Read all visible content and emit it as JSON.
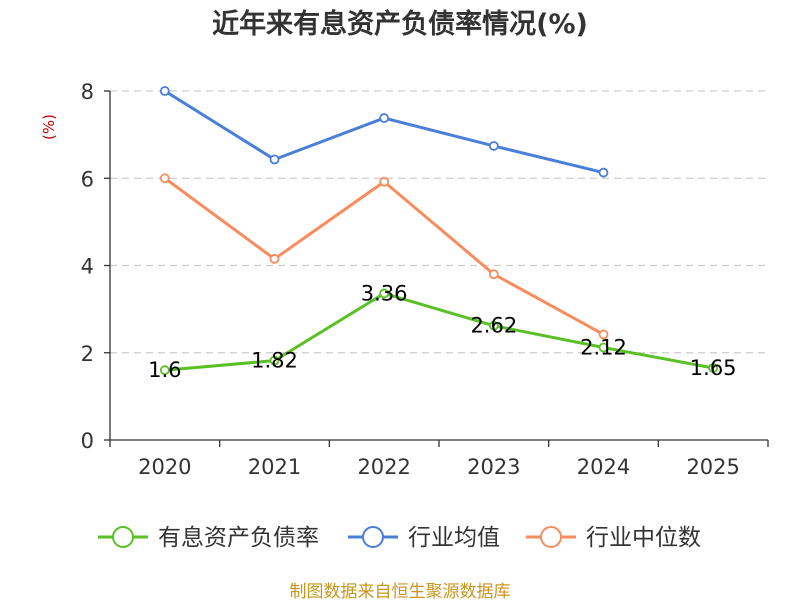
{
  "source": "制图数据来自恒生聚源数据库",
  "chart_data": {
    "type": "line",
    "title": "近年来有息资产负债率情况(%)",
    "ylabel": "(%)",
    "xlabel": "",
    "categories": [
      "2020",
      "2021",
      "2022",
      "2023",
      "2024",
      "2025"
    ],
    "ylim": [
      0,
      8
    ],
    "yticks": [
      "0",
      "2",
      "4",
      "6",
      "8"
    ],
    "grid": true,
    "legend_position": "bottom",
    "series": [
      {
        "name": "有息资产负债率",
        "color": "#5bbf26",
        "values": [
          1.6,
          1.82,
          3.36,
          2.62,
          2.12,
          1.65
        ],
        "labels": [
          "1.6",
          "1.82",
          "3.36",
          "2.62",
          "2.12",
          "1.65"
        ]
      },
      {
        "name": "行业均值",
        "color": "#4a7fd8",
        "values": [
          8.0,
          6.43,
          7.38,
          6.74,
          6.13,
          null
        ]
      },
      {
        "name": "行业中位数",
        "color": "#f78d5e",
        "values": [
          6.0,
          4.15,
          5.92,
          3.8,
          2.42,
          null
        ]
      }
    ]
  }
}
